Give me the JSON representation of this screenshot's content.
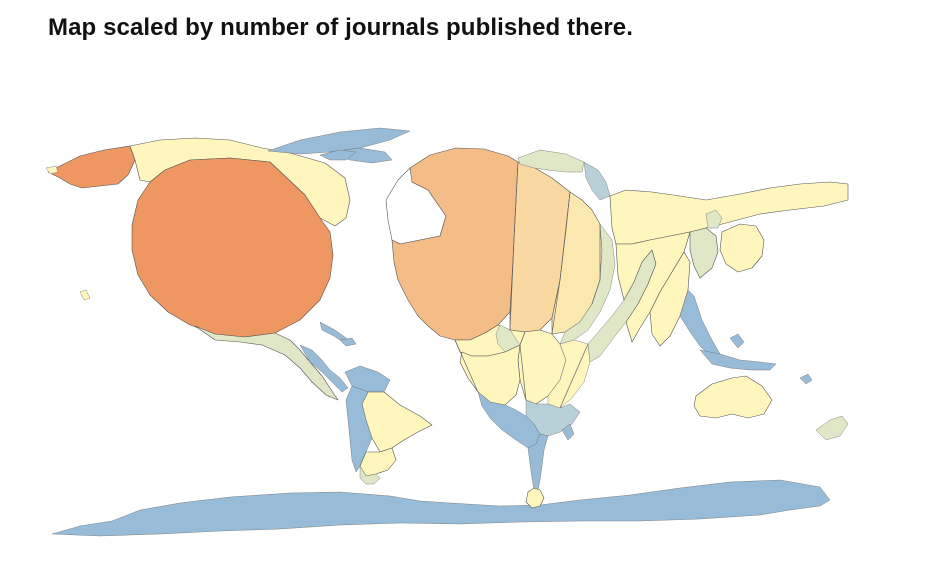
{
  "title": "Map scaled by number of journals published there.",
  "colors": {
    "very_high": "#ee9762",
    "high": "#f4bc87",
    "medium_high": "#f9d9a1",
    "medium": "#fbe8ae",
    "low": "#fef6bd",
    "lower": "#dfe7c6",
    "very_low": "#b8d0d8",
    "lowest": "#98bcd7"
  }
}
